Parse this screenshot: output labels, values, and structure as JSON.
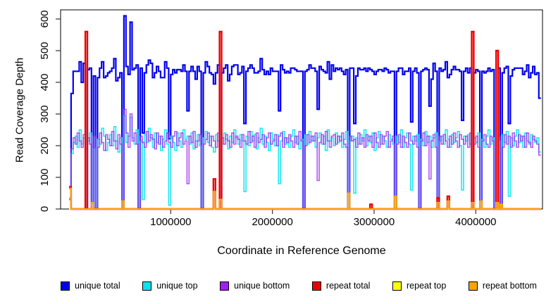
{
  "chart_data": {
    "type": "line",
    "subtype": "step",
    "title": "",
    "xlabel": "Coordinate in Reference Genome",
    "ylabel": "Read Coverage Depth",
    "grid": false,
    "legend_position": "bottom-horizontal",
    "xlim": [
      0,
      4640000
    ],
    "ylim": [
      0,
      629
    ],
    "bin_size": 20000,
    "n_bins": 232,
    "x_ticks": {
      "values": [
        1000000,
        2000000,
        3000000,
        4000000
      ],
      "labels": [
        "1000000",
        "2000000",
        "3000000",
        "4000000"
      ]
    },
    "y_ticks": {
      "values": [
        0,
        100,
        200,
        300,
        400,
        500,
        600
      ],
      "labels": [
        "0",
        "100",
        "200",
        "300",
        "400",
        "500",
        "600"
      ]
    },
    "axis_color": "#000000",
    "series_order": [
      "unique_total",
      "unique_top",
      "unique_bottom",
      "repeat_total",
      "repeat_top",
      "repeat_bottom"
    ],
    "series": {
      "unique_total": {
        "name": "unique total",
        "color": "#0000EE",
        "opacity": 1,
        "width": 2.2,
        "derived": "sum of unique_top and unique_bottom per bin"
      },
      "unique_top": {
        "name": "unique top",
        "color": "#00E5EE",
        "opacity": 0.85,
        "width": 1.7,
        "values": [
          35,
          175,
          210,
          230,
          195,
          250,
          205,
          225,
          0,
          215,
          240,
          0,
          190,
          0,
          220,
          205,
          255,
          230,
          185,
          210,
          235,
          200,
          260,
          215,
          180,
          225,
          0,
          295,
          210,
          230,
          290,
          225,
          205,
          250,
          0,
          215,
          30,
          235,
          210,
          255,
          225,
          195,
          240,
          210,
          230,
          185,
          220,
          250,
          205,
          12,
          230,
          210,
          185,
          240,
          215,
          195,
          250,
          220,
          230,
          205,
          240,
          190,
          215,
          235,
          200,
          0,
          225,
          245,
          210,
          230,
          195,
          180,
          235,
          215,
          0,
          205,
          240,
          220,
          190,
          230,
          210,
          250,
          225,
          205,
          235,
          215,
          55,
          230,
          200,
          245,
          215,
          235,
          190,
          225,
          255,
          205,
          230,
          210,
          185,
          240,
          220,
          200,
          235,
          80,
          215,
          245,
          205,
          225,
          195,
          230,
          250,
          210,
          230,
          190,
          220,
          0,
          235,
          205,
          245,
          215,
          230,
          195,
          225,
          240,
          205,
          230,
          185,
          250,
          215,
          225,
          200,
          240,
          210,
          230,
          195,
          220,
          245,
          0,
          215,
          230,
          50,
          225,
          205,
          235,
          215,
          250,
          200,
          230,
          210,
          240,
          185,
          225,
          245,
          205,
          230,
          215,
          195,
          235,
          220,
          205,
          0,
          230,
          210,
          250,
          195,
          225,
          240,
          205,
          60,
          230,
          215,
          235,
          0,
          220,
          200,
          245,
          210,
          230,
          195,
          225,
          240,
          0,
          215,
          230,
          205,
          250,
          220,
          195,
          235,
          210,
          225,
          245,
          200,
          60,
          230,
          215,
          235,
          205,
          0,
          225,
          210,
          240,
          0,
          220,
          195,
          230,
          250,
          205,
          225,
          0,
          0,
          215,
          0,
          235,
          210,
          245,
          40,
          225,
          200,
          230,
          250,
          210,
          230,
          195,
          240,
          215,
          205,
          235,
          220,
          210,
          225,
          180
        ]
      },
      "unique_bottom": {
        "name": "unique bottom",
        "color": "#A020F0",
        "opacity": 0.72,
        "width": 1.7,
        "values": [
          30,
          190,
          225,
          205,
          240,
          215,
          195,
          235,
          0,
          225,
          205,
          0,
          230,
          0,
          195,
          240,
          210,
          185,
          235,
          220,
          200,
          245,
          215,
          190,
          235,
          205,
          0,
          315,
          240,
          195,
          300,
          215,
          240,
          205,
          0,
          230,
          210,
          195,
          245,
          215,
          235,
          220,
          190,
          240,
          205,
          230,
          195,
          215,
          240,
          210,
          195,
          230,
          245,
          200,
          225,
          240,
          205,
          215,
          80,
          230,
          210,
          245,
          195,
          215,
          235,
          0,
          205,
          220,
          240,
          200,
          230,
          215,
          195,
          240,
          0,
          225,
          205,
          235,
          215,
          195,
          240,
          205,
          230,
          220,
          195,
          235,
          215,
          205,
          245,
          210,
          230,
          195,
          240,
          210,
          220,
          235,
          195,
          225,
          240,
          205,
          215,
          235,
          200,
          230,
          240,
          195,
          225,
          210,
          235,
          215,
          195,
          230,
          205,
          245,
          215,
          0,
          200,
          235,
          210,
          230,
          215,
          240,
          90,
          210,
          235,
          205,
          245,
          215,
          195,
          230,
          235,
          205,
          230,
          215,
          240,
          205,
          195,
          0,
          230,
          215,
          220,
          195,
          240,
          205,
          225,
          195,
          235,
          215,
          230,
          195,
          240,
          210,
          195,
          235,
          205,
          230,
          245,
          195,
          215,
          230,
          0,
          205,
          235,
          195,
          230,
          210,
          195,
          240,
          215,
          205,
          230,
          195,
          0,
          215,
          240,
          200,
          230,
          95,
          215,
          235,
          195,
          0,
          230,
          205,
          235,
          215,
          195,
          230,
          205,
          240,
          215,
          195,
          235,
          220,
          205,
          230,
          195,
          240,
          0,
          205,
          230,
          195,
          0,
          215,
          235,
          205,
          195,
          230,
          215,
          0,
          0,
          230,
          0,
          195,
          235,
          205,
          230,
          195,
          240,
          215,
          195,
          235,
          215,
          230,
          195,
          240,
          210,
          195,
          230,
          215,
          205,
          170
        ]
      },
      "repeat_total": {
        "name": "repeat total",
        "color": "#EE0000",
        "opacity": 1,
        "width": 2.4,
        "sparse": {
          "bins": [
            0,
            8,
            71,
            74,
            148,
            181,
            186,
            198,
            210
          ],
          "values": [
            70,
            560,
            95,
            560,
            15,
            35,
            40,
            560,
            500
          ]
        }
      },
      "repeat_top": {
        "name": "repeat top",
        "color": "#FFFF00",
        "opacity": 1,
        "width": 1.5,
        "sparse": {
          "bins": [],
          "values": []
        }
      },
      "repeat_bottom": {
        "name": "repeat bottom",
        "color": "#FFA500",
        "opacity": 1,
        "width": 2,
        "sparse": {
          "bins": [
            0,
            11,
            26,
            71,
            74,
            137,
            160,
            181,
            186,
            198,
            202,
            210,
            212
          ],
          "values": [
            65,
            20,
            25,
            55,
            30,
            50,
            40,
            20,
            25,
            20,
            25,
            20,
            15
          ]
        }
      }
    },
    "legend": [
      {
        "label": "unique total",
        "color": "#0000EE"
      },
      {
        "label": "unique top",
        "color": "#00E5EE"
      },
      {
        "label": "unique bottom",
        "color": "#A020F0"
      },
      {
        "label": "repeat total",
        "color": "#EE0000"
      },
      {
        "label": "repeat top",
        "color": "#FFFF00"
      },
      {
        "label": "repeat bottom",
        "color": "#FFA500"
      }
    ]
  }
}
